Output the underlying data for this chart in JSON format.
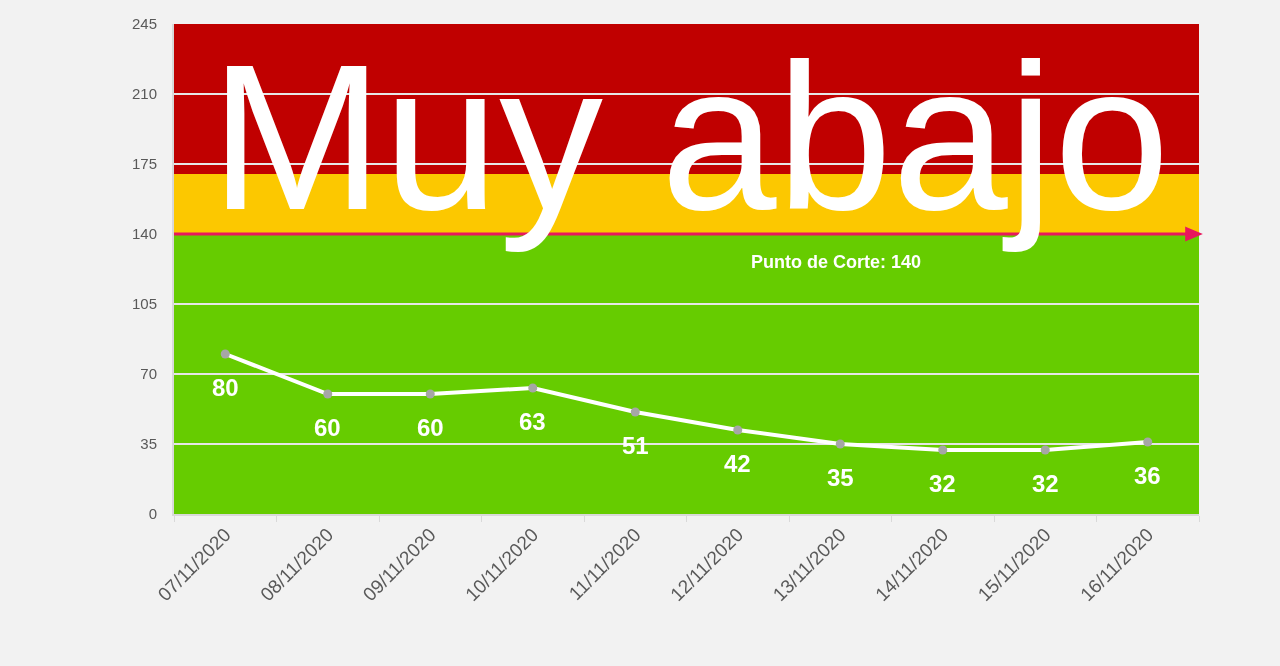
{
  "chart_data": {
    "type": "line",
    "categories": [
      "07/11/2020",
      "08/11/2020",
      "09/11/2020",
      "10/11/2020",
      "11/11/2020",
      "12/11/2020",
      "13/11/2020",
      "14/11/2020",
      "15/11/2020",
      "16/11/2020"
    ],
    "series": [
      {
        "color": "#ffffff",
        "values": [
          80,
          60,
          60,
          63,
          51,
          42,
          35,
          32,
          32,
          36
        ]
      }
    ],
    "ylim": [
      0,
      245
    ],
    "yticks": [
      0,
      35,
      70,
      105,
      140,
      175,
      210,
      245
    ],
    "grid": "y",
    "marker": "circle",
    "line_style": "solid",
    "data_labels": true,
    "ref_lines": [
      {
        "axis": "y",
        "value": 140,
        "label": "Punto de Corte: 140",
        "color": "#e8175d"
      }
    ],
    "bands": [
      {
        "axis": "y",
        "from": 0,
        "to": 140,
        "color": "#66cc00"
      },
      {
        "axis": "y",
        "from": 140,
        "to": 170,
        "color": "#fcc800"
      },
      {
        "axis": "y",
        "from": 170,
        "to": 245,
        "color": "#c00000"
      }
    ],
    "annotations": [
      "Muy abajo"
    ]
  }
}
